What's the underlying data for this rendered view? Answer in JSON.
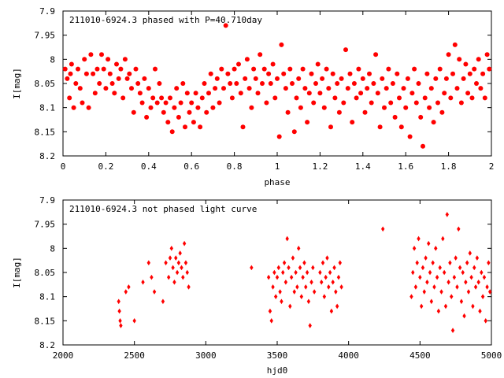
{
  "chart_data": [
    {
      "type": "scatter",
      "title": "211010-6924.3 phased with P=40.710day",
      "xlabel": "phase",
      "ylabel": "I[mag]",
      "xlim": [
        0,
        2
      ],
      "ylim": [
        7.9,
        8.2
      ],
      "y_inverted": true,
      "x_ticks": [
        "0",
        "0.2",
        "0.4",
        "0.6",
        "0.8",
        "1",
        "1.2",
        "1.4",
        "1.6",
        "1.8",
        "2"
      ],
      "y_ticks": [
        "7.9",
        "7.95",
        "8",
        "8.05",
        "8.1",
        "8.15",
        "8.2"
      ],
      "grid": false,
      "marker_color": "#ff0000",
      "marker": "filled-circle-large",
      "points": [
        [
          0.01,
          8.02
        ],
        [
          0.02,
          8.04
        ],
        [
          0.03,
          8.08
        ],
        [
          0.035,
          8.03
        ],
        [
          0.04,
          8.01
        ],
        [
          0.05,
          8.1
        ],
        [
          0.06,
          8.05
        ],
        [
          0.07,
          8.02
        ],
        [
          0.08,
          8.06
        ],
        [
          0.09,
          8.09
        ],
        [
          0.1,
          8.0
        ],
        [
          0.11,
          8.03
        ],
        [
          0.12,
          8.1
        ],
        [
          0.13,
          7.99
        ],
        [
          0.14,
          8.03
        ],
        [
          0.15,
          8.07
        ],
        [
          0.16,
          8.02
        ],
        [
          0.17,
          8.05
        ],
        [
          0.18,
          7.99
        ],
        [
          0.19,
          8.02
        ],
        [
          0.2,
          8.06
        ],
        [
          0.21,
          8.0
        ],
        [
          0.22,
          8.03
        ],
        [
          0.23,
          8.05
        ],
        [
          0.24,
          8.07
        ],
        [
          0.25,
          8.01
        ],
        [
          0.26,
          8.04
        ],
        [
          0.27,
          8.02
        ],
        [
          0.28,
          8.08
        ],
        [
          0.29,
          8.0
        ],
        [
          0.3,
          8.04
        ],
        [
          0.31,
          8.03
        ],
        [
          0.32,
          8.06
        ],
        [
          0.33,
          8.11
        ],
        [
          0.34,
          8.02
        ],
        [
          0.35,
          8.05
        ],
        [
          0.36,
          8.07
        ],
        [
          0.37,
          8.09
        ],
        [
          0.38,
          8.04
        ],
        [
          0.39,
          8.12
        ],
        [
          0.4,
          8.06
        ],
        [
          0.41,
          8.1
        ],
        [
          0.42,
          8.08
        ],
        [
          0.43,
          8.02
        ],
        [
          0.44,
          8.09
        ],
        [
          0.45,
          8.05
        ],
        [
          0.46,
          8.08
        ],
        [
          0.47,
          8.11
        ],
        [
          0.48,
          8.09
        ],
        [
          0.49,
          8.13
        ],
        [
          0.5,
          8.08
        ],
        [
          0.51,
          8.15
        ],
        [
          0.52,
          8.1
        ],
        [
          0.53,
          8.06
        ],
        [
          0.54,
          8.12
        ],
        [
          0.55,
          8.09
        ],
        [
          0.56,
          8.05
        ],
        [
          0.57,
          8.14
        ],
        [
          0.58,
          8.07
        ],
        [
          0.59,
          8.11
        ],
        [
          0.6,
          8.09
        ],
        [
          0.61,
          8.13
        ],
        [
          0.62,
          8.07
        ],
        [
          0.63,
          8.1
        ],
        [
          0.64,
          8.14
        ],
        [
          0.65,
          8.08
        ],
        [
          0.66,
          8.05
        ],
        [
          0.67,
          8.11
        ],
        [
          0.68,
          8.07
        ],
        [
          0.69,
          8.03
        ],
        [
          0.7,
          8.1
        ],
        [
          0.71,
          8.06
        ],
        [
          0.72,
          8.04
        ],
        [
          0.73,
          8.09
        ],
        [
          0.74,
          8.02
        ],
        [
          0.75,
          8.06
        ],
        [
          0.76,
          7.93
        ],
        [
          0.77,
          8.03
        ],
        [
          0.78,
          8.05
        ],
        [
          0.79,
          8.08
        ],
        [
          0.8,
          8.02
        ],
        [
          0.81,
          8.05
        ],
        [
          0.82,
          8.01
        ],
        [
          0.83,
          8.07
        ],
        [
          0.84,
          8.14
        ],
        [
          0.85,
          8.04
        ],
        [
          0.86,
          8.0
        ],
        [
          0.87,
          8.06
        ],
        [
          0.88,
          8.1
        ],
        [
          0.89,
          8.02
        ],
        [
          0.9,
          8.04
        ],
        [
          0.91,
          8.07
        ],
        [
          0.92,
          7.99
        ],
        [
          0.93,
          8.05
        ],
        [
          0.94,
          8.02
        ],
        [
          0.95,
          8.09
        ],
        [
          0.96,
          8.03
        ],
        [
          0.97,
          8.05
        ],
        [
          0.98,
          8.01
        ],
        [
          0.99,
          8.08
        ],
        [
          1.0,
          8.04
        ],
        [
          1.01,
          8.16
        ],
        [
          1.02,
          7.97
        ],
        [
          1.03,
          8.03
        ],
        [
          1.04,
          8.06
        ],
        [
          1.05,
          8.11
        ],
        [
          1.06,
          8.02
        ],
        [
          1.07,
          8.05
        ],
        [
          1.08,
          8.15
        ],
        [
          1.09,
          8.08
        ],
        [
          1.1,
          8.04
        ],
        [
          1.11,
          8.1
        ],
        [
          1.12,
          8.02
        ],
        [
          1.13,
          8.06
        ],
        [
          1.14,
          8.13
        ],
        [
          1.15,
          8.07
        ],
        [
          1.16,
          8.03
        ],
        [
          1.17,
          8.09
        ],
        [
          1.18,
          8.05
        ],
        [
          1.19,
          8.01
        ],
        [
          1.2,
          8.07
        ],
        [
          1.21,
          8.04
        ],
        [
          1.22,
          8.1
        ],
        [
          1.23,
          8.02
        ],
        [
          1.24,
          8.06
        ],
        [
          1.25,
          8.14
        ],
        [
          1.26,
          8.03
        ],
        [
          1.27,
          8.08
        ],
        [
          1.28,
          8.05
        ],
        [
          1.29,
          8.11
        ],
        [
          1.3,
          8.04
        ],
        [
          1.31,
          8.09
        ],
        [
          1.32,
          7.98
        ],
        [
          1.33,
          8.06
        ],
        [
          1.34,
          8.03
        ],
        [
          1.35,
          8.13
        ],
        [
          1.36,
          8.05
        ],
        [
          1.37,
          8.08
        ],
        [
          1.38,
          8.02
        ],
        [
          1.39,
          8.07
        ],
        [
          1.4,
          8.04
        ],
        [
          1.41,
          8.11
        ],
        [
          1.42,
          8.06
        ],
        [
          1.43,
          8.03
        ],
        [
          1.44,
          8.09
        ],
        [
          1.45,
          8.05
        ],
        [
          1.46,
          7.99
        ],
        [
          1.47,
          8.07
        ],
        [
          1.48,
          8.14
        ],
        [
          1.49,
          8.04
        ],
        [
          1.5,
          8.1
        ],
        [
          1.51,
          8.06
        ],
        [
          1.52,
          8.02
        ],
        [
          1.53,
          8.09
        ],
        [
          1.54,
          8.05
        ],
        [
          1.55,
          8.12
        ],
        [
          1.56,
          8.03
        ],
        [
          1.57,
          8.08
        ],
        [
          1.58,
          8.14
        ],
        [
          1.59,
          8.06
        ],
        [
          1.6,
          8.1
        ],
        [
          1.61,
          8.04
        ],
        [
          1.62,
          8.16
        ],
        [
          1.63,
          8.07
        ],
        [
          1.64,
          8.02
        ],
        [
          1.65,
          8.09
        ],
        [
          1.66,
          8.05
        ],
        [
          1.67,
          8.12
        ],
        [
          1.68,
          8.18
        ],
        [
          1.69,
          8.08
        ],
        [
          1.7,
          8.03
        ],
        [
          1.71,
          8.1
        ],
        [
          1.72,
          8.06
        ],
        [
          1.73,
          8.13
        ],
        [
          1.74,
          8.04
        ],
        [
          1.75,
          8.09
        ],
        [
          1.76,
          8.02
        ],
        [
          1.77,
          8.11
        ],
        [
          1.78,
          8.07
        ],
        [
          1.79,
          8.04
        ],
        [
          1.8,
          7.99
        ],
        [
          1.81,
          8.08
        ],
        [
          1.82,
          8.03
        ],
        [
          1.83,
          7.97
        ],
        [
          1.84,
          8.06
        ],
        [
          1.85,
          8.0
        ],
        [
          1.86,
          8.09
        ],
        [
          1.87,
          8.04
        ],
        [
          1.88,
          8.01
        ],
        [
          1.89,
          8.07
        ],
        [
          1.9,
          8.03
        ],
        [
          1.91,
          8.08
        ],
        [
          1.92,
          8.02
        ],
        [
          1.93,
          8.05
        ],
        [
          1.94,
          8.0
        ],
        [
          1.95,
          8.06
        ],
        [
          1.96,
          8.03
        ],
        [
          1.97,
          8.08
        ],
        [
          1.98,
          7.99
        ],
        [
          1.99,
          8.02
        ]
      ]
    },
    {
      "type": "scatter",
      "title": "211010-6924.3 not phased light curve",
      "xlabel": "hjd0",
      "ylabel": "I[mag]",
      "xlim": [
        2000,
        5000
      ],
      "ylim": [
        7.9,
        8.2
      ],
      "y_inverted": true,
      "x_ticks": [
        "2000",
        "2500",
        "3000",
        "3500",
        "4000",
        "4500",
        "5000"
      ],
      "y_ticks": [
        "7.9",
        "7.95",
        "8",
        "8.05",
        "8.1",
        "8.15",
        "8.2"
      ],
      "grid": false,
      "marker_color": "#ff0000",
      "marker": "small-diamond",
      "points": [
        [
          2390,
          8.11
        ],
        [
          2395,
          8.13
        ],
        [
          2400,
          8.15
        ],
        [
          2405,
          8.16
        ],
        [
          2440,
          8.09
        ],
        [
          2460,
          8.08
        ],
        [
          2500,
          8.15
        ],
        [
          2560,
          8.07
        ],
        [
          2600,
          8.03
        ],
        [
          2620,
          8.06
        ],
        [
          2640,
          8.09
        ],
        [
          2700,
          8.11
        ],
        [
          2720,
          8.03
        ],
        [
          2740,
          8.06
        ],
        [
          2750,
          8.02
        ],
        [
          2760,
          8.0
        ],
        [
          2770,
          8.04
        ],
        [
          2780,
          8.07
        ],
        [
          2790,
          8.02
        ],
        [
          2800,
          8.05
        ],
        [
          2810,
          8.03
        ],
        [
          2820,
          8.01
        ],
        [
          2830,
          8.04
        ],
        [
          2840,
          8.06
        ],
        [
          2850,
          7.99
        ],
        [
          2860,
          8.03
        ],
        [
          2870,
          8.05
        ],
        [
          2880,
          8.08
        ],
        [
          3320,
          8.04
        ],
        [
          3440,
          8.06
        ],
        [
          3450,
          8.13
        ],
        [
          3460,
          8.15
        ],
        [
          3470,
          8.08
        ],
        [
          3480,
          8.05
        ],
        [
          3490,
          8.1
        ],
        [
          3500,
          8.06
        ],
        [
          3510,
          8.04
        ],
        [
          3520,
          8.09
        ],
        [
          3530,
          8.11
        ],
        [
          3540,
          8.05
        ],
        [
          3550,
          8.03
        ],
        [
          3560,
          8.07
        ],
        [
          3570,
          7.98
        ],
        [
          3580,
          8.04
        ],
        [
          3590,
          8.12
        ],
        [
          3600,
          8.06
        ],
        [
          3610,
          8.02
        ],
        [
          3620,
          8.09
        ],
        [
          3630,
          8.05
        ],
        [
          3640,
          8.08
        ],
        [
          3650,
          8.0
        ],
        [
          3660,
          8.04
        ],
        [
          3670,
          8.1
        ],
        [
          3680,
          8.06
        ],
        [
          3690,
          8.03
        ],
        [
          3700,
          8.08
        ],
        [
          3710,
          8.05
        ],
        [
          3720,
          8.11
        ],
        [
          3730,
          8.16
        ],
        [
          3740,
          8.07
        ],
        [
          3750,
          8.04
        ],
        [
          3760,
          8.09
        ],
        [
          3800,
          8.05
        ],
        [
          3810,
          8.07
        ],
        [
          3820,
          8.03
        ],
        [
          3830,
          8.1
        ],
        [
          3840,
          8.06
        ],
        [
          3850,
          8.02
        ],
        [
          3860,
          8.08
        ],
        [
          3870,
          8.05
        ],
        [
          3880,
          8.13
        ],
        [
          3890,
          8.07
        ],
        [
          3900,
          8.04
        ],
        [
          3910,
          8.09
        ],
        [
          3920,
          8.12
        ],
        [
          3930,
          8.06
        ],
        [
          3940,
          8.03
        ],
        [
          3950,
          8.08
        ],
        [
          4240,
          7.96
        ],
        [
          4440,
          8.1
        ],
        [
          4450,
          8.05
        ],
        [
          4460,
          8.0
        ],
        [
          4470,
          8.08
        ],
        [
          4480,
          8.03
        ],
        [
          4490,
          7.98
        ],
        [
          4500,
          8.06
        ],
        [
          4510,
          8.12
        ],
        [
          4520,
          8.04
        ],
        [
          4530,
          8.09
        ],
        [
          4540,
          8.02
        ],
        [
          4550,
          8.07
        ],
        [
          4560,
          7.99
        ],
        [
          4570,
          8.05
        ],
        [
          4580,
          8.11
        ],
        [
          4590,
          8.03
        ],
        [
          4600,
          8.08
        ],
        [
          4610,
          8.0
        ],
        [
          4620,
          8.06
        ],
        [
          4630,
          8.13
        ],
        [
          4640,
          8.04
        ],
        [
          4650,
          8.09
        ],
        [
          4660,
          7.98
        ],
        [
          4670,
          8.05
        ],
        [
          4680,
          8.12
        ],
        [
          4690,
          7.93
        ],
        [
          4700,
          8.07
        ],
        [
          4710,
          8.03
        ],
        [
          4720,
          8.1
        ],
        [
          4730,
          8.17
        ],
        [
          4740,
          8.06
        ],
        [
          4750,
          8.02
        ],
        [
          4760,
          8.08
        ],
        [
          4770,
          7.96
        ],
        [
          4780,
          8.04
        ],
        [
          4790,
          8.11
        ],
        [
          4800,
          8.05
        ],
        [
          4810,
          8.14
        ],
        [
          4820,
          8.07
        ],
        [
          4830,
          8.03
        ],
        [
          4840,
          8.09
        ],
        [
          4850,
          8.01
        ],
        [
          4860,
          8.06
        ],
        [
          4870,
          8.12
        ],
        [
          4880,
          8.04
        ],
        [
          4890,
          8.08
        ],
        [
          4900,
          8.02
        ],
        [
          4910,
          8.07
        ],
        [
          4920,
          8.13
        ],
        [
          4930,
          8.05
        ],
        [
          4940,
          8.1
        ],
        [
          4950,
          8.06
        ],
        [
          4960,
          8.15
        ],
        [
          4970,
          8.08
        ],
        [
          4980,
          8.03
        ],
        [
          4990,
          8.09
        ]
      ]
    }
  ]
}
